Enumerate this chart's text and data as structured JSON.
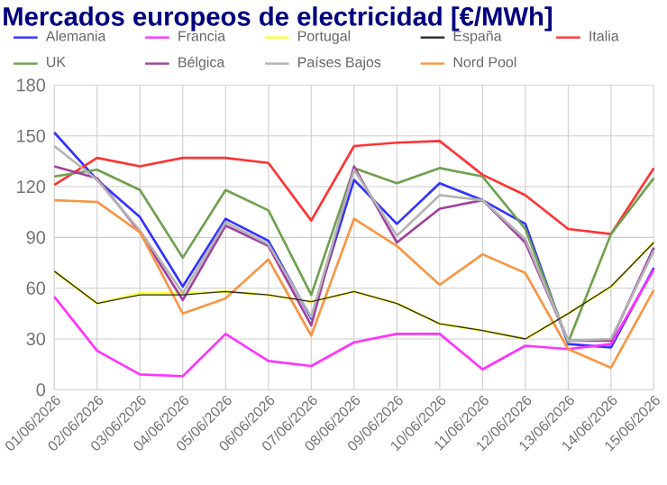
{
  "chart_data": {
    "type": "line",
    "title": "Mercados europeos de electricidad [€/MWh]",
    "categories": [
      "01/06/2026",
      "02/06/2026",
      "03/06/2026",
      "04/06/2026",
      "05/06/2026",
      "06/06/2026",
      "07/06/2026",
      "08/06/2026",
      "09/06/2026",
      "10/06/2026",
      "11/06/2026",
      "12/06/2026",
      "13/06/2026",
      "14/06/2026",
      "15/06/2026"
    ],
    "series": [
      {
        "name": "Alemania",
        "color": "#3333ff",
        "values": [
          152,
          124,
          102,
          61,
          101,
          88,
          42,
          124,
          98,
          122,
          112,
          98,
          27,
          25,
          72
        ]
      },
      {
        "name": "Francia",
        "color": "#ff33ff",
        "values": [
          55,
          23,
          9,
          8,
          33,
          17,
          14,
          28,
          33,
          33,
          12,
          26,
          24,
          27,
          71
        ]
      },
      {
        "name": "Portugal",
        "color": "#ffff33",
        "values": [
          70,
          51,
          57,
          57,
          58,
          56,
          52,
          58,
          51,
          39,
          35,
          30,
          45,
          61,
          87
        ]
      },
      {
        "name": "España",
        "color": "#2b2b2b",
        "values": [
          70,
          51,
          56,
          56,
          58,
          56,
          52,
          58,
          51,
          39,
          35,
          30,
          45,
          61,
          87
        ]
      },
      {
        "name": "Italia",
        "color": "#ff3333",
        "values": [
          121,
          137,
          132,
          137,
          137,
          134,
          100,
          144,
          146,
          147,
          127,
          115,
          95,
          92,
          131
        ]
      },
      {
        "name": "UK",
        "color": "#70a050",
        "values": [
          126,
          130,
          118,
          78,
          118,
          106,
          56,
          131,
          122,
          131,
          126,
          95,
          28,
          92,
          125
        ]
      },
      {
        "name": "Bélgica",
        "color": "#a040a0",
        "values": [
          132,
          125,
          93,
          53,
          97,
          85,
          38,
          132,
          87,
          107,
          112,
          87,
          29,
          29,
          84
        ]
      },
      {
        "name": "Países Bajos",
        "color": "#b4b4b4",
        "values": [
          144,
          124,
          94,
          57,
          99,
          86,
          43,
          130,
          91,
          115,
          112,
          89,
          29,
          30,
          82
        ]
      },
      {
        "name": "Nord Pool",
        "color": "#f79646",
        "values": [
          112,
          111,
          93,
          45,
          54,
          77,
          32,
          101,
          85,
          62,
          80,
          69,
          24,
          13,
          59
        ]
      }
    ],
    "ylim": [
      0,
      180
    ],
    "yticks": [
      0,
      30,
      60,
      90,
      120,
      150,
      180
    ],
    "grid": true,
    "legend": "top",
    "marker": "none",
    "line_style": "solid"
  }
}
